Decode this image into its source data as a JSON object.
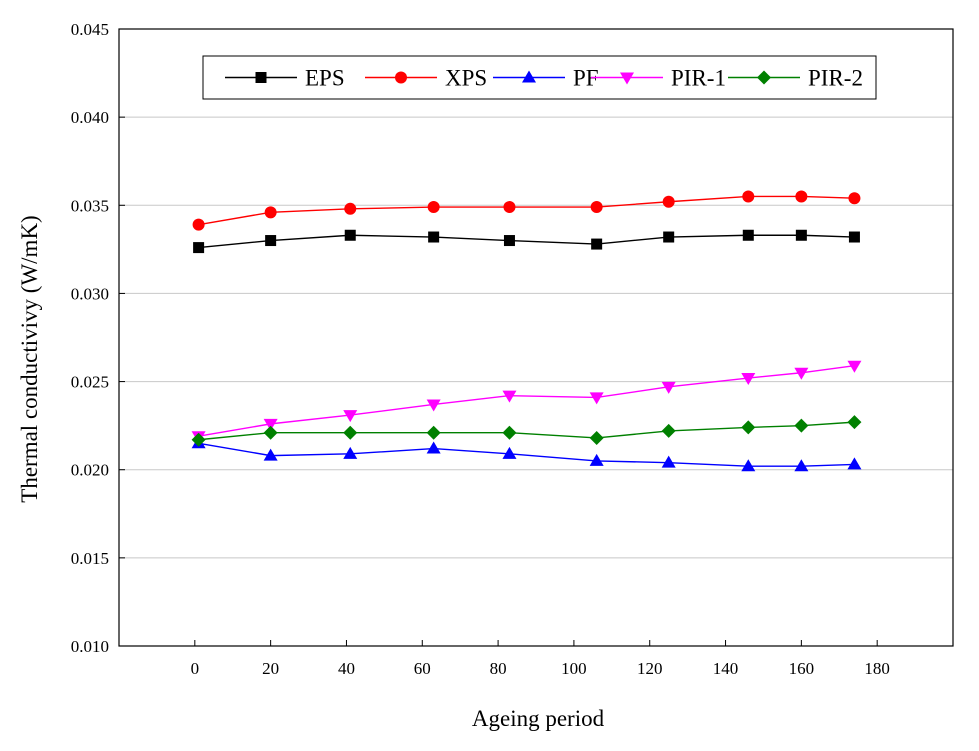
{
  "chart_data": {
    "type": "line",
    "title": "",
    "xlabel": "Ageing period",
    "ylabel": "Thermal conductivivy (W/mK)",
    "xlim": [
      -20,
      200
    ],
    "ylim": [
      0.01,
      0.045
    ],
    "xticks": [
      0,
      20,
      40,
      60,
      80,
      100,
      120,
      140,
      160,
      180
    ],
    "xtick_labels": [
      "0",
      "20",
      "40",
      "60",
      "80",
      "100",
      "120",
      "140",
      "160",
      "180"
    ],
    "yticks": [
      0.01,
      0.015,
      0.02,
      0.025,
      0.03,
      0.035,
      0.04,
      0.045
    ],
    "ytick_labels": [
      "0.010",
      "0.015",
      "0.020",
      "0.025",
      "0.030",
      "0.035",
      "0.040",
      "0.045"
    ],
    "grid": "horizontal",
    "legend_position": "top",
    "x": [
      1,
      20,
      41,
      63,
      83,
      106,
      125,
      146,
      160,
      174
    ],
    "series": [
      {
        "name": "EPS",
        "color": "#000000",
        "marker": "square",
        "values": [
          0.0326,
          0.033,
          0.0333,
          0.0332,
          0.033,
          0.0328,
          0.0332,
          0.0333,
          0.0333,
          0.0332
        ]
      },
      {
        "name": "XPS",
        "color": "#ff0000",
        "marker": "circle",
        "values": [
          0.0339,
          0.0346,
          0.0348,
          0.0349,
          0.0349,
          0.0349,
          0.0352,
          0.0355,
          0.0355,
          0.0354
        ]
      },
      {
        "name": "PF",
        "color": "#0000ff",
        "marker": "triangle-up",
        "values": [
          0.0215,
          0.0208,
          0.0209,
          0.0212,
          0.0209,
          0.0205,
          0.0204,
          0.0202,
          0.0202,
          0.0203
        ]
      },
      {
        "name": "PIR-1",
        "color": "#ff00ff",
        "marker": "triangle-down",
        "values": [
          0.0219,
          0.0226,
          0.0231,
          0.0237,
          0.0242,
          0.0241,
          0.0247,
          0.0252,
          0.0255,
          0.0259
        ]
      },
      {
        "name": "PIR-2",
        "color": "#008000",
        "marker": "diamond",
        "values": [
          0.0217,
          0.0221,
          0.0221,
          0.0221,
          0.0221,
          0.0218,
          0.0222,
          0.0224,
          0.0225,
          0.0227
        ]
      }
    ]
  }
}
